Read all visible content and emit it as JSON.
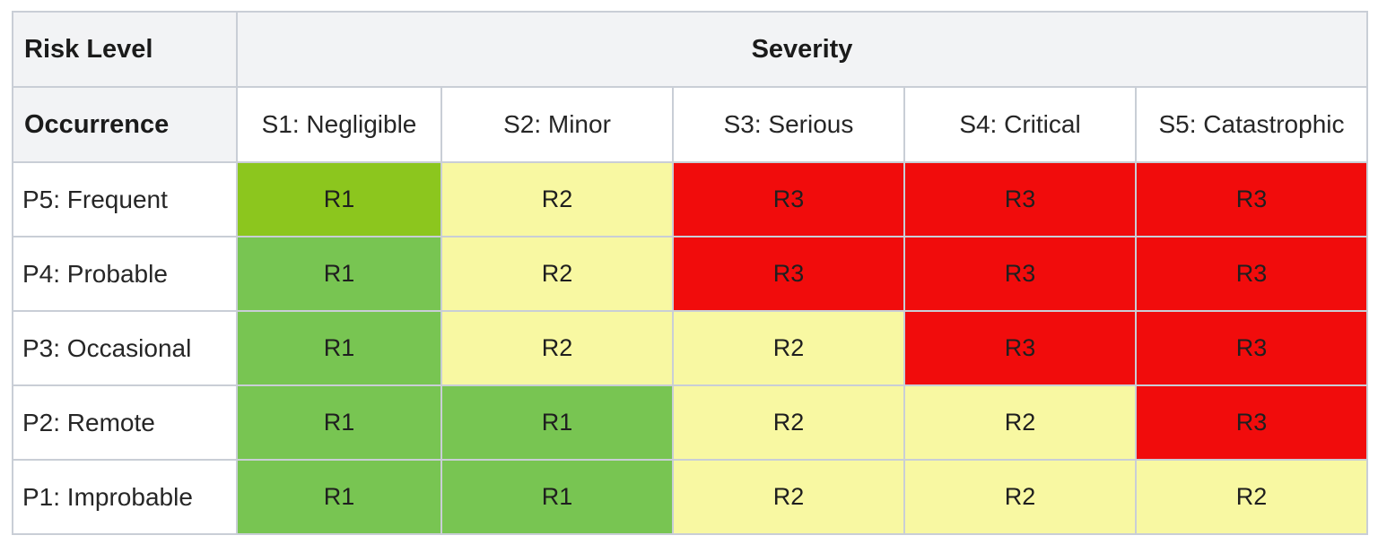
{
  "matrix": {
    "title_corner": "Risk Level",
    "occurrence_header": "Occurrence",
    "severity_header": "Severity",
    "severity_levels": [
      {
        "label": "S1: Negligible"
      },
      {
        "label": "S2: Minor"
      },
      {
        "label": "S3: Serious"
      },
      {
        "label": "S4: Critical"
      },
      {
        "label": "S5: Catastrophic"
      }
    ],
    "rows": [
      {
        "label": "P5: Frequent",
        "cells": [
          {
            "value": "R1",
            "color": "green_bright"
          },
          {
            "value": "R2",
            "color": "yellow"
          },
          {
            "value": "R3",
            "color": "red"
          },
          {
            "value": "R3",
            "color": "red"
          },
          {
            "value": "R3",
            "color": "red"
          }
        ]
      },
      {
        "label": "P4: Probable",
        "cells": [
          {
            "value": "R1",
            "color": "green"
          },
          {
            "value": "R2",
            "color": "yellow"
          },
          {
            "value": "R3",
            "color": "red"
          },
          {
            "value": "R3",
            "color": "red"
          },
          {
            "value": "R3",
            "color": "red"
          }
        ]
      },
      {
        "label": "P3: Occasional",
        "cells": [
          {
            "value": "R1",
            "color": "green"
          },
          {
            "value": "R2",
            "color": "yellow"
          },
          {
            "value": "R2",
            "color": "yellow"
          },
          {
            "value": "R3",
            "color": "red"
          },
          {
            "value": "R3",
            "color": "red"
          }
        ]
      },
      {
        "label": "P2: Remote",
        "cells": [
          {
            "value": "R1",
            "color": "green"
          },
          {
            "value": "R1",
            "color": "green"
          },
          {
            "value": "R2",
            "color": "yellow"
          },
          {
            "value": "R2",
            "color": "yellow"
          },
          {
            "value": "R3",
            "color": "red"
          }
        ]
      },
      {
        "label": "P1: Improbable",
        "cells": [
          {
            "value": "R1",
            "color": "green"
          },
          {
            "value": "R1",
            "color": "green"
          },
          {
            "value": "R2",
            "color": "yellow"
          },
          {
            "value": "R2",
            "color": "yellow"
          },
          {
            "value": "R2",
            "color": "yellow"
          }
        ]
      }
    ]
  },
  "colors": {
    "green_bright": "#8cc61e",
    "green": "#78c552",
    "yellow": "#f8f8a2",
    "red": "#f10c0c",
    "header_bg": "#f2f3f5",
    "border": "#c9ced6"
  },
  "chart_data": {
    "type": "heatmap",
    "title": "Risk Level matrix (Occurrence vs Severity)",
    "x_categories": [
      "S1: Negligible",
      "S2: Minor",
      "S3: Serious",
      "S4: Critical",
      "S5: Catastrophic"
    ],
    "y_categories": [
      "P5: Frequent",
      "P4: Probable",
      "P3: Occasional",
      "P2: Remote",
      "P1: Improbable"
    ],
    "values": [
      [
        "R1",
        "R2",
        "R3",
        "R3",
        "R3"
      ],
      [
        "R1",
        "R2",
        "R3",
        "R3",
        "R3"
      ],
      [
        "R1",
        "R2",
        "R2",
        "R3",
        "R3"
      ],
      [
        "R1",
        "R1",
        "R2",
        "R2",
        "R3"
      ],
      [
        "R1",
        "R1",
        "R2",
        "R2",
        "R2"
      ]
    ],
    "legend": {
      "R1": "green",
      "R2": "yellow",
      "R3": "red"
    }
  }
}
